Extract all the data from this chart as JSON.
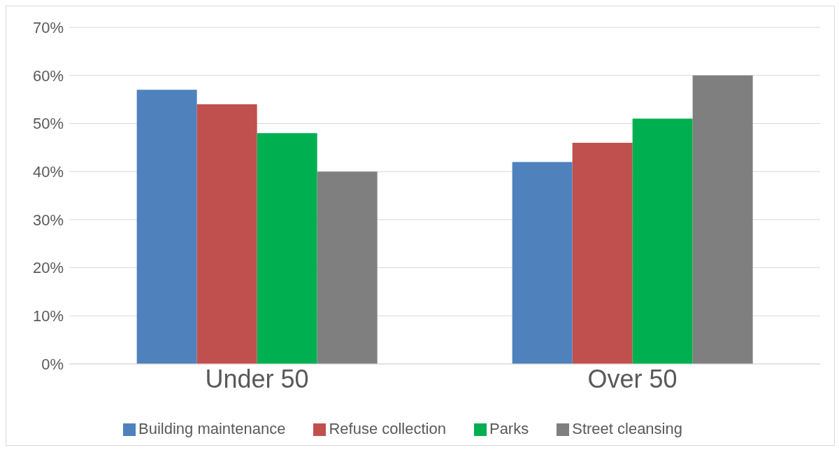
{
  "chart_data": {
    "type": "bar",
    "categories": [
      "Under 50",
      "Over 50"
    ],
    "series": [
      {
        "name": "Building maintenance",
        "color": "#4f81bd",
        "values": [
          57,
          42
        ]
      },
      {
        "name": "Refuse collection",
        "color": "#c0504d",
        "values": [
          54,
          46
        ]
      },
      {
        "name": "Parks",
        "color": "#00b050",
        "values": [
          48,
          51
        ]
      },
      {
        "name": "Street cleansing",
        "color": "#7f7f7f",
        "values": [
          40,
          60
        ]
      }
    ],
    "ylim": [
      0,
      70
    ],
    "yticks": [
      {
        "value": 0,
        "label": "0%"
      },
      {
        "value": 10,
        "label": "10%"
      },
      {
        "value": 20,
        "label": "20%"
      },
      {
        "value": 30,
        "label": "30%"
      },
      {
        "value": 40,
        "label": "40%"
      },
      {
        "value": 50,
        "label": "50%"
      },
      {
        "value": 60,
        "label": "60%"
      },
      {
        "value": 70,
        "label": "70%"
      }
    ],
    "grid": "y",
    "legend": "bottom"
  }
}
